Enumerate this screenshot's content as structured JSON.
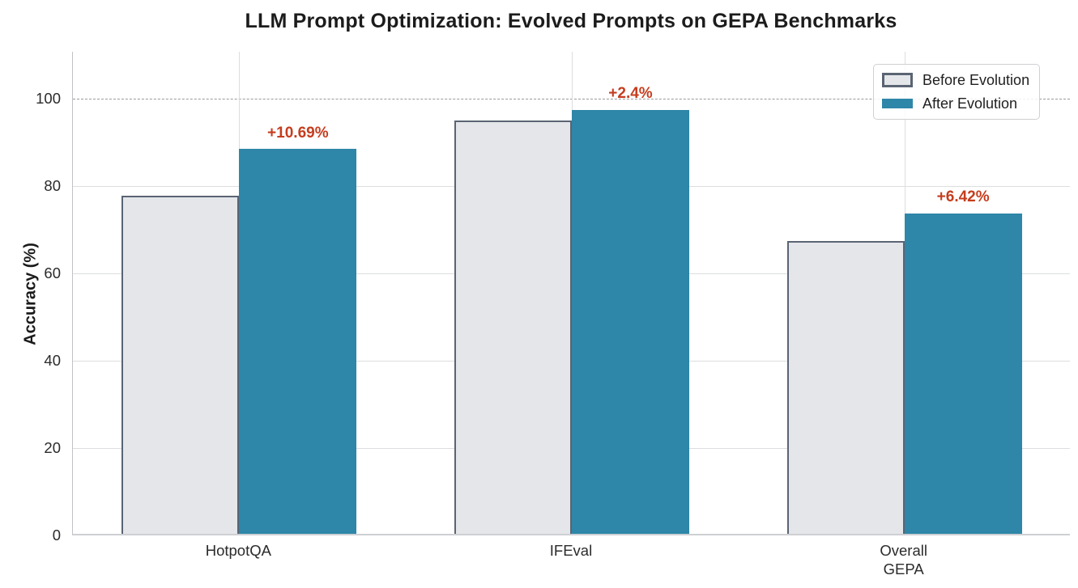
{
  "chart_data": {
    "type": "bar",
    "title": "LLM Prompt Optimization: Evolved Prompts on GEPA Benchmarks",
    "xlabel": "",
    "ylabel": "Accuracy (%)",
    "categories": [
      "HotpotQA",
      "IFEval",
      "Overall\nGEPA"
    ],
    "series": [
      {
        "name": "Before Evolution",
        "values": [
          77.64,
          94.97,
          67.19
        ],
        "fill": "#e5e6ea",
        "edge": "#5a6473"
      },
      {
        "name": "After Evolution",
        "values": [
          88.33,
          97.37,
          73.61
        ],
        "fill": "#2e86a8",
        "edge": "#2e86a8"
      }
    ],
    "annotations": [
      {
        "text": "+10.69%",
        "category_index": 0,
        "series_index": 1
      },
      {
        "text": "+2.4%",
        "category_index": 1,
        "series_index": 1
      },
      {
        "text": "+6.42%",
        "category_index": 2,
        "series_index": 1
      }
    ],
    "annotation_color": "#c53d1e",
    "yticks": [
      0,
      20,
      40,
      60,
      80,
      100
    ],
    "ylim": [
      0,
      110.7
    ],
    "reference_line": {
      "y": 100,
      "style": "dashed",
      "color": "#9a9a9a"
    },
    "grid": true,
    "legend_position": "upper right"
  }
}
